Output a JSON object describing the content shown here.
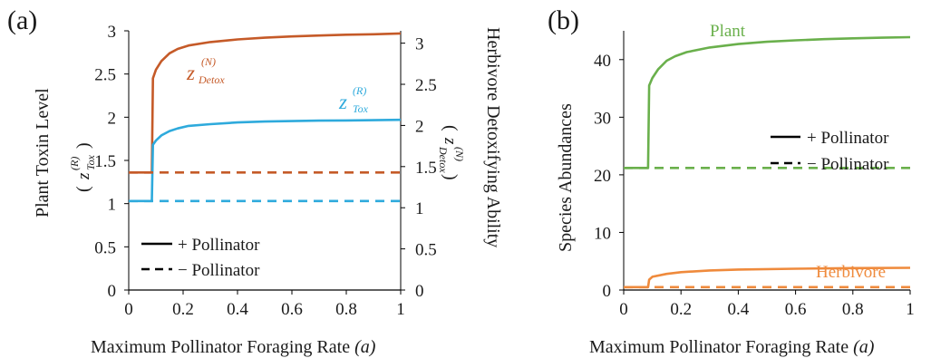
{
  "chart_data": [
    {
      "panel_label": "(a)",
      "type": "line",
      "xlabel": "Maximum Pollinator Foraging Rate",
      "xlabel_var": "(a)",
      "ylabel_left": "Plant Toxin Level",
      "ylabel_left_sym": {
        "base": "z",
        "sup": "(R)",
        "sub": "Tox"
      },
      "ylabel_right": "Herbivore Detoxifying Ability",
      "ylabel_right_sym": {
        "base": "z",
        "sup": "(N)",
        "sub": "Detox"
      },
      "xlim": [
        0,
        1
      ],
      "ylim_left": [
        0,
        3
      ],
      "ylim_right": [
        0,
        3.15
      ],
      "xticks": [
        "0",
        "0.2",
        "0.4",
        "0.6",
        "0.8",
        "1"
      ],
      "xtick_values": [
        0,
        0.2,
        0.4,
        0.6,
        0.8,
        1
      ],
      "yticks_left": [
        "0",
        "0.5",
        "1",
        "1.5",
        "2",
        "2.5",
        "3"
      ],
      "ytick_values_left": [
        0,
        0.5,
        1,
        1.5,
        2,
        2.5,
        3
      ],
      "yticks_right": [
        "0",
        "0.5",
        "1",
        "1.5",
        "2",
        "2.5",
        "3"
      ],
      "ytick_values_right": [
        0,
        0.5,
        1,
        1.5,
        2,
        2.5,
        3
      ],
      "legend": {
        "position": "bottom-left",
        "with_label": "+ Pollinator",
        "without_label": "− Pollinator"
      },
      "series": [
        {
          "name": "Detox",
          "axis": "left",
          "style": "solid",
          "color": "#c55a28",
          "x": [
            0,
            0.085,
            0.089,
            0.1,
            0.12,
            0.15,
            0.18,
            0.22,
            0.3,
            0.4,
            0.5,
            0.6,
            0.7,
            0.8,
            0.9,
            1.0
          ],
          "y": [
            1.36,
            1.36,
            2.45,
            2.55,
            2.65,
            2.74,
            2.79,
            2.83,
            2.87,
            2.9,
            2.92,
            2.935,
            2.945,
            2.955,
            2.96,
            2.97
          ]
        },
        {
          "name": "Tox",
          "axis": "left",
          "style": "solid",
          "color": "#2eaadc",
          "x": [
            0,
            0.085,
            0.089,
            0.1,
            0.12,
            0.15,
            0.18,
            0.22,
            0.3,
            0.4,
            0.5,
            0.6,
            0.7,
            0.8,
            0.9,
            1.0
          ],
          "y": [
            1.03,
            1.03,
            1.68,
            1.73,
            1.79,
            1.84,
            1.87,
            1.9,
            1.92,
            1.94,
            1.95,
            1.955,
            1.96,
            1.963,
            1.966,
            1.97
          ]
        },
        {
          "name": "Detox",
          "axis": "left",
          "style": "dashed",
          "color": "#c55a28",
          "x": [
            0,
            1
          ],
          "y": [
            1.36,
            1.36
          ]
        },
        {
          "name": "Tox",
          "axis": "left",
          "style": "dashed",
          "color": "#2eaadc",
          "x": [
            0,
            1
          ],
          "y": [
            1.03,
            1.03
          ]
        }
      ],
      "annotations": [
        {
          "base": "z",
          "sup": "(N)",
          "sub": "Detox",
          "color": "#c55a28"
        },
        {
          "base": "z",
          "sup": "(R)",
          "sub": "Tox",
          "color": "#2eaadc"
        }
      ]
    },
    {
      "panel_label": "(b)",
      "type": "line",
      "xlabel": "Maximum Pollinator Foraging Rate",
      "xlabel_var": "(a)",
      "ylabel": "Species Abundances",
      "xlim": [
        0,
        1
      ],
      "ylim": [
        0,
        45
      ],
      "xticks": [
        "0",
        "0.2",
        "0.4",
        "0.6",
        "0.8",
        "1"
      ],
      "xtick_values": [
        0,
        0.2,
        0.4,
        0.6,
        0.8,
        1
      ],
      "yticks": [
        "0",
        "10",
        "20",
        "30",
        "40"
      ],
      "ytick_values": [
        0,
        10,
        20,
        30,
        40
      ],
      "legend": {
        "position": "top-right",
        "with_label": "+ Pollinator",
        "without_label": "− Pollinator"
      },
      "series": [
        {
          "name": "Plant",
          "style": "solid",
          "color": "#6ab04c",
          "x": [
            0,
            0.085,
            0.089,
            0.1,
            0.12,
            0.15,
            0.18,
            0.22,
            0.3,
            0.4,
            0.5,
            0.6,
            0.7,
            0.8,
            0.9,
            1.0
          ],
          "y": [
            21.2,
            21.2,
            35.5,
            36.8,
            38.3,
            39.8,
            40.6,
            41.3,
            42.1,
            42.7,
            43.1,
            43.35,
            43.55,
            43.7,
            43.8,
            43.9
          ]
        },
        {
          "name": "Herbivore",
          "style": "solid",
          "color": "#ef8a3c",
          "x": [
            0,
            0.085,
            0.089,
            0.1,
            0.15,
            0.2,
            0.3,
            0.4,
            0.6,
            0.8,
            1.0
          ],
          "y": [
            0.5,
            0.5,
            1.8,
            2.3,
            2.8,
            3.1,
            3.4,
            3.55,
            3.7,
            3.8,
            3.85
          ]
        },
        {
          "name": "Plant",
          "style": "dashed",
          "color": "#6ab04c",
          "x": [
            0,
            1
          ],
          "y": [
            21.2,
            21.2
          ]
        },
        {
          "name": "Herbivore",
          "style": "dashed",
          "color": "#ef8a3c",
          "x": [
            0,
            1
          ],
          "y": [
            0.5,
            0.5
          ]
        }
      ]
    }
  ]
}
